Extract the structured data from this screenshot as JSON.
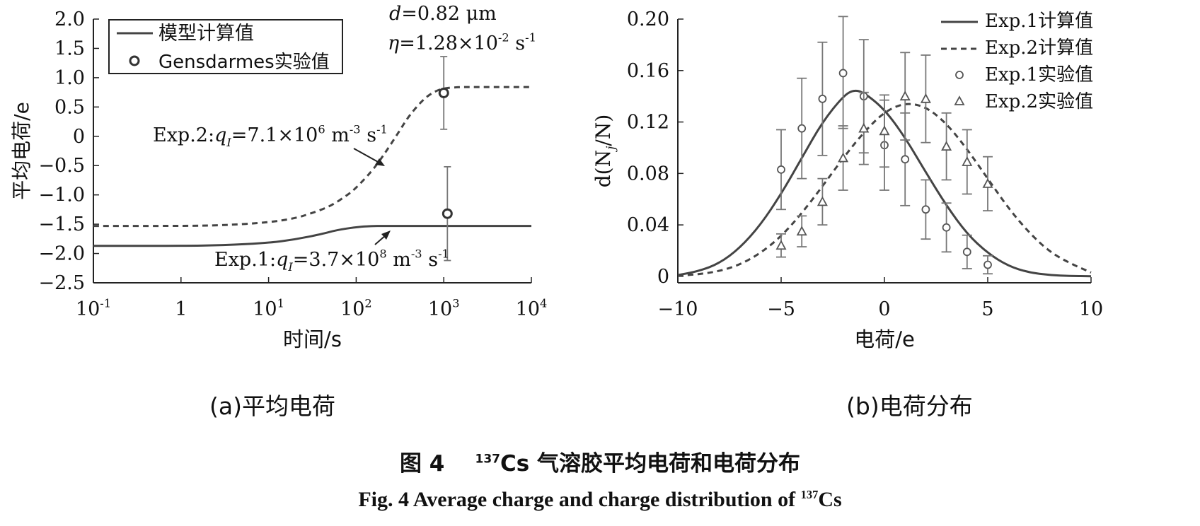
{
  "colors": {
    "line": "#444444",
    "axis": "#222222",
    "text": "#111111"
  },
  "captions": {
    "panel_a": "(a)平均电荷",
    "panel_b": "(b)电荷分布",
    "figure_zh_prefix": "图 4",
    "figure_zh_iso": "137",
    "figure_zh_suffix": "Cs 气溶胶平均电荷和电荷分布",
    "figure_en_prefix": "Fig. 4   Average charge and charge distribution of",
    "figure_en_iso": "137",
    "figure_en_suffix": "Cs"
  },
  "chart_data": [
    {
      "type": "line",
      "id": "a",
      "xscale": "log",
      "xlim": [
        0.1,
        10000
      ],
      "ylim": [
        -2.5,
        2.0
      ],
      "xlabel": "时间/s",
      "ylabel": "平均电荷/e",
      "xticks": [
        {
          "v": 0.1,
          "base": "10",
          "exp": "-1"
        },
        {
          "v": 1,
          "base": "1",
          "exp": ""
        },
        {
          "v": 10,
          "base": "10",
          "exp": "1"
        },
        {
          "v": 100,
          "base": "10",
          "exp": "2"
        },
        {
          "v": 1000,
          "base": "10",
          "exp": "3"
        },
        {
          "v": 10000,
          "base": "10",
          "exp": "4"
        }
      ],
      "yticks": [
        {
          "v": 2.0,
          "label": "2.0"
        },
        {
          "v": 1.5,
          "label": "1.5"
        },
        {
          "v": 1.0,
          "label": "1.0"
        },
        {
          "v": 0.5,
          "label": "0.5"
        },
        {
          "v": 0,
          "label": "0"
        },
        {
          "v": -0.5,
          "label": "−0.5"
        },
        {
          "v": -1.0,
          "label": "−1.0"
        },
        {
          "v": -1.5,
          "label": "−1.5"
        },
        {
          "v": -2.0,
          "label": "−2.0"
        },
        {
          "v": -2.5,
          "label": "−2.5"
        }
      ],
      "legend": {
        "position": "top-left",
        "entries": [
          "模型计算值",
          "Gensdarmes实验值"
        ]
      },
      "annotations": {
        "d_label": "d",
        "d_value": "=0.82 μm",
        "eta_label": "η",
        "eta_value": "=1.28×10",
        "eta_exp": "-2",
        "eta_unit": " s",
        "eta_unit_exp": "-1",
        "exp2_prefix": "Exp.2:",
        "exp2_q": "q",
        "exp2_sub": "I",
        "exp2_value": "=7.1×10",
        "exp2_exp": "6",
        "exp2_unit": " m",
        "exp2_unit_exp": "-3",
        "exp2_unit2": " s",
        "exp2_unit2_exp": "-1",
        "exp1_prefix": "Exp.1:",
        "exp1_q": "q",
        "exp1_sub": "I",
        "exp1_value": "=3.7×10",
        "exp1_exp": "8",
        "exp1_unit": " m",
        "exp1_unit_exp": "-3",
        "exp1_unit2": " s",
        "exp1_unit2_exp": "-1"
      },
      "series": [
        {
          "name": "Exp.1",
          "style": "solid",
          "x": [
            0.1,
            1,
            3,
            10,
            20,
            40,
            60,
            100,
            150,
            200,
            500,
            1000,
            10000
          ],
          "y": [
            -1.87,
            -1.87,
            -1.86,
            -1.82,
            -1.76,
            -1.67,
            -1.6,
            -1.55,
            -1.53,
            -1.53,
            -1.53,
            -1.53,
            -1.53
          ]
        },
        {
          "name": "Exp.2",
          "style": "dashed",
          "x": [
            0.1,
            1,
            3,
            10,
            20,
            30,
            50,
            80,
            100,
            150,
            200,
            300,
            400,
            600,
            800,
            1000,
            1500,
            2000,
            10000
          ],
          "y": [
            -1.53,
            -1.53,
            -1.52,
            -1.47,
            -1.4,
            -1.32,
            -1.2,
            -1.0,
            -0.88,
            -0.6,
            -0.35,
            0.05,
            0.35,
            0.65,
            0.77,
            0.82,
            0.84,
            0.84,
            0.84
          ]
        }
      ],
      "points": [
        {
          "name": "Gensdarmes-Exp.2",
          "x": 1000,
          "y": 0.74,
          "lo": 0.12,
          "hi": 1.36
        },
        {
          "name": "Gensdarmes-Exp.1",
          "x": 1100,
          "y": -1.32,
          "lo": -2.12,
          "hi": -0.52
        }
      ]
    },
    {
      "type": "line",
      "id": "b",
      "xlim": [
        -10,
        10
      ],
      "ylim": [
        -0.005,
        0.2
      ],
      "xlabel": "电荷/e",
      "ylabel_prefix": "d(N",
      "ylabel_sub": "j",
      "ylabel_suffix": "/N)",
      "xticks": [
        {
          "v": -10,
          "label": "−10"
        },
        {
          "v": -5,
          "label": "−5"
        },
        {
          "v": 0,
          "label": "0"
        },
        {
          "v": 5,
          "label": "5"
        },
        {
          "v": 10,
          "label": "10"
        }
      ],
      "yticks": [
        {
          "v": 0.2,
          "label": "0.20"
        },
        {
          "v": 0.16,
          "label": "0.16"
        },
        {
          "v": 0.12,
          "label": "0.12"
        },
        {
          "v": 0.08,
          "label": "0.08"
        },
        {
          "v": 0.04,
          "label": "0.04"
        },
        {
          "v": 0,
          "label": "0"
        }
      ],
      "legend": {
        "position": "top-right",
        "entries": [
          "Exp.1计算值",
          "Exp.2计算值",
          "Exp.1实验值",
          "Exp.2实验值"
        ]
      },
      "series": [
        {
          "name": "Exp.1计算值",
          "style": "solid",
          "x": [
            -10,
            -9,
            -8,
            -7,
            -6,
            -5,
            -4,
            -3,
            -2,
            -1.5,
            -1,
            0,
            1,
            2,
            3,
            4,
            5,
            6,
            7,
            8,
            9,
            10
          ],
          "y": [
            0.001,
            0.004,
            0.01,
            0.022,
            0.04,
            0.064,
            0.092,
            0.12,
            0.14,
            0.145,
            0.143,
            0.13,
            0.108,
            0.081,
            0.055,
            0.033,
            0.018,
            0.008,
            0.003,
            0.001,
            0.0003,
            0.0001
          ]
        },
        {
          "name": "Exp.2计算值",
          "style": "dashed",
          "x": [
            -10,
            -9,
            -8,
            -7,
            -6,
            -5,
            -4,
            -3,
            -2,
            -1,
            0,
            1,
            2,
            3,
            4,
            5,
            6,
            7,
            8,
            9,
            10
          ],
          "y": [
            0.0005,
            0.0016,
            0.004,
            0.009,
            0.018,
            0.031,
            0.049,
            0.07,
            0.092,
            0.112,
            0.128,
            0.135,
            0.132,
            0.119,
            0.099,
            0.076,
            0.053,
            0.034,
            0.019,
            0.01,
            0.003
          ]
        }
      ],
      "points": [
        {
          "name": "Exp.1实验值",
          "marker": "circle",
          "x": [
            -5,
            -4,
            -3,
            -2,
            -1,
            0,
            1,
            2,
            3,
            4,
            5
          ],
          "y": [
            0.083,
            0.115,
            0.138,
            0.158,
            0.14,
            0.102,
            0.091,
            0.052,
            0.038,
            0.019,
            0.009
          ],
          "lo": [
            0.052,
            0.076,
            0.094,
            0.115,
            0.096,
            0.067,
            0.055,
            0.029,
            0.019,
            0.006,
            0.002
          ],
          "hi": [
            0.114,
            0.154,
            0.182,
            0.202,
            0.184,
            0.137,
            0.127,
            0.075,
            0.057,
            0.032,
            0.016
          ]
        },
        {
          "name": "Exp.2实验值",
          "marker": "triangle",
          "x": [
            -5,
            -4,
            -3,
            -2,
            -1,
            0,
            1,
            2,
            3,
            4,
            5
          ],
          "y": [
            0.024,
            0.035,
            0.058,
            0.092,
            0.115,
            0.113,
            0.14,
            0.138,
            0.101,
            0.089,
            0.072
          ],
          "lo": [
            0.015,
            0.023,
            0.04,
            0.067,
            0.087,
            0.085,
            0.106,
            0.104,
            0.075,
            0.064,
            0.051
          ],
          "hi": [
            0.033,
            0.047,
            0.076,
            0.117,
            0.143,
            0.141,
            0.174,
            0.172,
            0.127,
            0.114,
            0.093
          ]
        }
      ]
    }
  ]
}
